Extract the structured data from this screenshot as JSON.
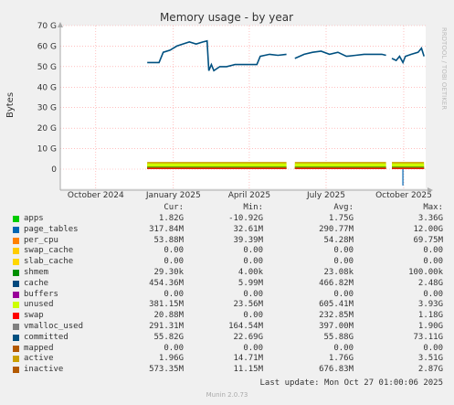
{
  "chart_data": {
    "type": "line",
    "title": "Memory usage - by year",
    "ylabel": "Bytes",
    "y_ticks": [
      "0",
      "10 G",
      "20 G",
      "30 G",
      "40 G",
      "50 G",
      "60 G",
      "70 G"
    ],
    "y_tick_values": [
      0,
      10,
      20,
      30,
      40,
      50,
      60,
      70
    ],
    "ylim": [
      -8,
      70
    ],
    "x_ticks": [
      "October 2024",
      "January 2025",
      "April 2025",
      "July 2025",
      "October 2025"
    ],
    "x_tick_values": [
      "2024-10-01",
      "2025-01-01",
      "2025-04-01",
      "2025-07-01",
      "2025-10-01"
    ],
    "xlim": [
      "2024-08-20",
      "2025-10-27"
    ],
    "grid": true,
    "series_committed": {
      "name": "committed",
      "color": "#005080",
      "segments": [
        [
          [
            "2024-12-01",
            52
          ],
          [
            "2024-12-15",
            52
          ],
          [
            "2024-12-20",
            57
          ],
          [
            "2024-12-28",
            58
          ],
          [
            "2025-01-05",
            60
          ],
          [
            "2025-01-12",
            61
          ],
          [
            "2025-01-20",
            62
          ],
          [
            "2025-01-28",
            61
          ],
          [
            "2025-02-05",
            62
          ],
          [
            "2025-02-10",
            62.5
          ],
          [
            "2025-02-12",
            48
          ],
          [
            "2025-02-15",
            51
          ],
          [
            "2025-02-18",
            48
          ],
          [
            "2025-02-25",
            50
          ],
          [
            "2025-03-05",
            50
          ],
          [
            "2025-03-15",
            51
          ],
          [
            "2025-03-25",
            51
          ],
          [
            "2025-04-05",
            51
          ],
          [
            "2025-04-10",
            51
          ],
          [
            "2025-04-14",
            55
          ],
          [
            "2025-04-25",
            56
          ],
          [
            "2025-05-05",
            55.5
          ],
          [
            "2025-05-15",
            56
          ]
        ],
        [
          [
            "2025-05-25",
            54
          ],
          [
            "2025-06-05",
            56
          ],
          [
            "2025-06-15",
            57
          ],
          [
            "2025-06-25",
            57.5
          ],
          [
            "2025-07-05",
            56
          ],
          [
            "2025-07-15",
            57
          ],
          [
            "2025-07-25",
            55
          ],
          [
            "2025-08-05",
            55.5
          ],
          [
            "2025-08-15",
            56
          ],
          [
            "2025-08-25",
            56
          ],
          [
            "2025-09-05",
            56
          ],
          [
            "2025-09-10",
            55.5
          ]
        ],
        [
          [
            "2025-09-17",
            54
          ],
          [
            "2025-09-22",
            53
          ],
          [
            "2025-09-26",
            55
          ],
          [
            "2025-09-30",
            52
          ],
          [
            "2025-10-03",
            55
          ],
          [
            "2025-10-10",
            56
          ],
          [
            "2025-10-18",
            57
          ],
          [
            "2025-10-22",
            59
          ],
          [
            "2025-10-25",
            55
          ]
        ]
      ]
    },
    "series_bottom": [
      {
        "name": "active",
        "color": "#CCA000",
        "height": 3.5
      },
      {
        "name": "unused",
        "color": "#CCFF00",
        "height": 2.8
      },
      {
        "name": "shmem",
        "color": "#008F00",
        "height": 1.2
      },
      {
        "name": "inactive",
        "color": "#B35A00",
        "height": 1.0
      },
      {
        "name": "swap",
        "color": "#FF0000",
        "height": 0.3
      }
    ],
    "bottom_segments": [
      [
        "2024-12-01",
        "2025-05-15"
      ],
      [
        "2025-05-25",
        "2025-09-10"
      ],
      [
        "2025-09-17",
        "2025-10-25"
      ]
    ],
    "dip": {
      "date": "2025-09-30",
      "value": -8
    }
  },
  "legend": {
    "headers": {
      "cur": "Cur:",
      "min": "Min:",
      "avg": "Avg:",
      "max": "Max:"
    },
    "items": [
      {
        "name": "apps",
        "color": "#00CC00",
        "cur": "1.82G",
        "min": "-10.92G",
        "avg": "1.75G",
        "max": "3.36G"
      },
      {
        "name": "page_tables",
        "color": "#0066B3",
        "cur": "317.84M",
        "min": "32.61M",
        "avg": "290.77M",
        "max": "12.00G"
      },
      {
        "name": "per_cpu",
        "color": "#FF8000",
        "cur": "53.88M",
        "min": "39.39M",
        "avg": "54.28M",
        "max": "69.75M"
      },
      {
        "name": "swap_cache",
        "color": "#FFCC00",
        "cur": "0.00",
        "min": "0.00",
        "avg": "0.00",
        "max": "0.00"
      },
      {
        "name": "slab_cache",
        "color": "#FFD700",
        "cur": "0.00",
        "min": "0.00",
        "avg": "0.00",
        "max": "0.00"
      },
      {
        "name": "shmem",
        "color": "#008F00",
        "cur": "29.30k",
        "min": "4.00k",
        "avg": "23.08k",
        "max": "100.00k"
      },
      {
        "name": "cache",
        "color": "#00487D",
        "cur": "454.36M",
        "min": "5.99M",
        "avg": "466.82M",
        "max": "2.48G"
      },
      {
        "name": "buffers",
        "color": "#990099",
        "cur": "0.00",
        "min": "0.00",
        "avg": "0.00",
        "max": "0.00"
      },
      {
        "name": "unused",
        "color": "#CCFF00",
        "cur": "381.15M",
        "min": "23.56M",
        "avg": "605.41M",
        "max": "3.93G"
      },
      {
        "name": "swap",
        "color": "#FF0000",
        "cur": "20.88M",
        "min": "0.00",
        "avg": "232.85M",
        "max": "1.18G"
      },
      {
        "name": "vmalloc_used",
        "color": "#808080",
        "cur": "291.31M",
        "min": "164.54M",
        "avg": "397.00M",
        "max": "1.90G"
      },
      {
        "name": "committed",
        "color": "#005080",
        "cur": "55.82G",
        "min": "22.69G",
        "avg": "55.88G",
        "max": "73.11G"
      },
      {
        "name": "mapped",
        "color": "#B35A00",
        "cur": "0.00",
        "min": "0.00",
        "avg": "0.00",
        "max": "0.00"
      },
      {
        "name": "active",
        "color": "#CCA000",
        "cur": "1.96G",
        "min": "14.71M",
        "avg": "1.76G",
        "max": "3.51G"
      },
      {
        "name": "inactive",
        "color": "#B35A00",
        "cur": "573.35M",
        "min": "11.15M",
        "avg": "676.83M",
        "max": "2.87G"
      }
    ]
  },
  "last_update": "Last update: Mon Oct 27 01:00:06 2025",
  "footer": "Munin 2.0.73",
  "side_text": "RRDTOOL / TOBI OETIKER",
  "colors": {
    "background": "#f0f0f0",
    "plot_bg": "#ffffff",
    "grid": "#ff9999",
    "axis": "#aaaaaa"
  }
}
